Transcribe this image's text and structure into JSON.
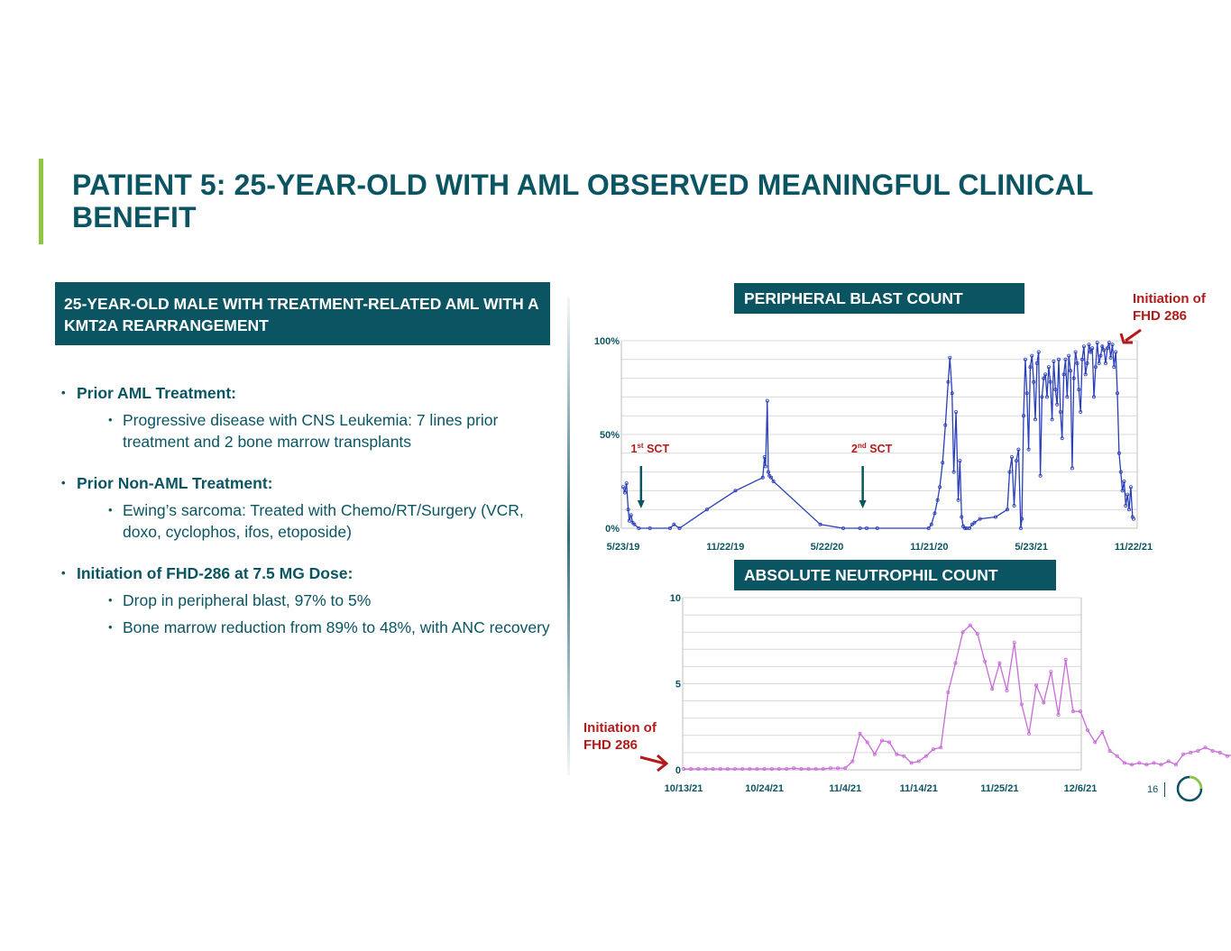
{
  "title": "PATIENT 5: 25-YEAR-OLD WITH AML OBSERVED MEANINGFUL CLINICAL BENEFIT",
  "subhead": "25-YEAR-OLD MALE WITH TREATMENT-RELATED AML WITH A KMT2A REARRANGEMENT",
  "sections": [
    {
      "heading": "Prior AML Treatment:",
      "items": [
        "Progressive disease with CNS Leukemia: 7 lines prior treatment and 2 bone marrow transplants"
      ]
    },
    {
      "heading": "Prior Non-AML Treatment:",
      "items": [
        "Ewing’s sarcoma: Treated with Chemo/RT/Surgery (VCR, doxo, cyclophos, ifos, etoposide)"
      ]
    },
    {
      "heading": "Initiation of FHD-286 at 7.5 MG Dose:",
      "items": [
        "Drop in peripheral blast, 97% to 5%",
        "Bone marrow reduction from 89% to 48%, with ANC recovery"
      ]
    }
  ],
  "page_number": "16",
  "colors": {
    "teal": "#0b5563",
    "green_accent": "#8dc63f",
    "red_annotation": "#b31b1b",
    "blast_line": "#2a3fb8",
    "anc_line": "#c86ad8"
  },
  "chart_data": [
    {
      "type": "line",
      "title": "PERIPHERAL BLAST COUNT",
      "callout": {
        "line1": "Initiation of",
        "line2": "FHD 286"
      },
      "x_ticks": [
        "5/23/19",
        "11/22/19",
        "5/22/20",
        "11/21/20",
        "5/23/21",
        "11/22/21"
      ],
      "y_ticks": [
        "0%",
        "50%",
        "100%"
      ],
      "ylim": [
        0,
        100
      ],
      "grid": true,
      "x_unit": "date",
      "annotations": [
        {
          "label": "1st SCT",
          "base": "1",
          "sup": "st",
          "rest": " SCT",
          "x": "2019-06-24"
        },
        {
          "label": "2nd SCT",
          "base": "2",
          "sup": "nd",
          "rest": " SCT",
          "x": "2020-07-25"
        }
      ],
      "series": [
        {
          "x": [
            "2019-05-23",
            "2019-05-26",
            "2019-05-29",
            "2019-06-01",
            "2019-06-03",
            "2019-06-06",
            "2019-06-09",
            "2019-06-12",
            "2019-06-20",
            "2019-07-10",
            "2019-08-15",
            "2019-08-22",
            "2019-09-01",
            "2019-10-20",
            "2019-12-10",
            "2020-01-28",
            "2020-01-31",
            "2020-02-02",
            "2020-02-05",
            "2020-02-07",
            "2020-02-09",
            "2020-02-12",
            "2020-02-16",
            "2020-05-10",
            "2020-06-20",
            "2020-07-20",
            "2020-08-01",
            "2020-08-20",
            "2020-11-20",
            "2020-11-25",
            "2020-12-01",
            "2020-12-06",
            "2020-12-10",
            "2020-12-15",
            "2020-12-20",
            "2020-12-25",
            "2020-12-28",
            "2021-01-01",
            "2021-01-04",
            "2021-01-08",
            "2021-01-12",
            "2021-01-15",
            "2021-01-18",
            "2021-01-21",
            "2021-01-24",
            "2021-01-27",
            "2021-02-01",
            "2021-02-06",
            "2021-02-10",
            "2021-02-20",
            "2021-03-20",
            "2021-04-10",
            "2021-04-14",
            "2021-04-18",
            "2021-04-22",
            "2021-04-26",
            "2021-04-30",
            "2021-05-04",
            "2021-05-06",
            "2021-05-09",
            "2021-05-12",
            "2021-05-15",
            "2021-05-18",
            "2021-05-21",
            "2021-05-24",
            "2021-05-27",
            "2021-05-30",
            "2021-06-02",
            "2021-06-05",
            "2021-06-08",
            "2021-06-11",
            "2021-06-14",
            "2021-06-17",
            "2021-06-20",
            "2021-06-23",
            "2021-06-26",
            "2021-06-29",
            "2021-07-02",
            "2021-07-05",
            "2021-07-08",
            "2021-07-11",
            "2021-07-14",
            "2021-07-17",
            "2021-07-20",
            "2021-07-23",
            "2021-07-26",
            "2021-07-29",
            "2021-08-01",
            "2021-08-04",
            "2021-08-07",
            "2021-08-10",
            "2021-08-13",
            "2021-08-16",
            "2021-08-19",
            "2021-08-22",
            "2021-08-25",
            "2021-08-28",
            "2021-08-31",
            "2021-09-03",
            "2021-09-06",
            "2021-09-09",
            "2021-09-12",
            "2021-09-15",
            "2021-09-18",
            "2021-09-21",
            "2021-09-24",
            "2021-09-27",
            "2021-09-30",
            "2021-10-03",
            "2021-10-06",
            "2021-10-09",
            "2021-10-12",
            "2021-10-15",
            "2021-10-18",
            "2021-10-21",
            "2021-10-24",
            "2021-10-27",
            "2021-10-30",
            "2021-11-02",
            "2021-11-05",
            "2021-11-08",
            "2021-11-11",
            "2021-11-14",
            "2021-11-17",
            "2021-11-20",
            "2021-11-22"
          ],
          "y": [
            22,
            19,
            24,
            10,
            4,
            7,
            3,
            2,
            0,
            0,
            0,
            2,
            0,
            10,
            20,
            27,
            38,
            33,
            68,
            30,
            28,
            27,
            25,
            2,
            0,
            0,
            0,
            0,
            0,
            2,
            8,
            15,
            22,
            35,
            55,
            78,
            91,
            72,
            30,
            62,
            15,
            36,
            6,
            1,
            0,
            0,
            0,
            2,
            3,
            5,
            6,
            10,
            30,
            38,
            12,
            36,
            42,
            0,
            5,
            60,
            90,
            72,
            42,
            86,
            92,
            78,
            58,
            88,
            94,
            28,
            70,
            80,
            82,
            70,
            86,
            78,
            58,
            89,
            74,
            66,
            90,
            62,
            48,
            82,
            90,
            70,
            92,
            84,
            32,
            80,
            94,
            88,
            74,
            62,
            90,
            97,
            82,
            88,
            98,
            94,
            96,
            70,
            86,
            99,
            88,
            92,
            97,
            95,
            88,
            96,
            99,
            91,
            98,
            86,
            94,
            72,
            40,
            30,
            20,
            25,
            12,
            18,
            10,
            22,
            6,
            5
          ]
        }
      ]
    },
    {
      "type": "line",
      "title": "ABSOLUTE NEUTROPHIL COUNT",
      "callout": {
        "line1": "Initiation of",
        "line2": "FHD 286"
      },
      "x_ticks": [
        "10/13/21",
        "10/24/21",
        "11/4/21",
        "11/14/21",
        "11/25/21",
        "12/6/21"
      ],
      "y_ticks": [
        "0",
        "5",
        "10"
      ],
      "ylim": [
        0,
        10
      ],
      "grid": true,
      "x_unit": "date",
      "series": [
        {
          "x": [
            "2021-10-13",
            "2021-10-14",
            "2021-10-15",
            "2021-10-16",
            "2021-10-17",
            "2021-10-18",
            "2021-10-19",
            "2021-10-20",
            "2021-10-21",
            "2021-10-22",
            "2021-10-23",
            "2021-10-24",
            "2021-10-25",
            "2021-10-26",
            "2021-10-27",
            "2021-10-28",
            "2021-10-29",
            "2021-10-30",
            "2021-10-31",
            "2021-11-01",
            "2021-11-02",
            "2021-11-03",
            "2021-11-04",
            "2021-11-05",
            "2021-11-06",
            "2021-11-07",
            "2021-11-08",
            "2021-11-09",
            "2021-11-10",
            "2021-11-11",
            "2021-11-12",
            "2021-11-13",
            "2021-11-14",
            "2021-11-15",
            "2021-11-16",
            "2021-11-17",
            "2021-11-18",
            "2021-11-19",
            "2021-11-20",
            "2021-11-21",
            "2021-11-22",
            "2021-11-23",
            "2021-11-24",
            "2021-11-25",
            "2021-11-26",
            "2021-11-27",
            "2021-11-28",
            "2021-11-29",
            "2021-11-30",
            "2021-12-01",
            "2021-12-02",
            "2021-12-03",
            "2021-12-04",
            "2021-12-05",
            "2021-12-06",
            "2021-12-07",
            "2021-12-08",
            "2021-12-09",
            "2021-12-10",
            "2021-12-11",
            "2021-12-12",
            "2021-12-13",
            "2021-12-14",
            "2021-12-15",
            "2021-12-16",
            "2021-12-17",
            "2021-12-18",
            "2021-12-19",
            "2021-12-20",
            "2021-12-21",
            "2021-12-22",
            "2021-12-23",
            "2021-12-24",
            "2021-12-25",
            "2021-12-26",
            "2021-12-27"
          ],
          "y": [
            0.05,
            0.05,
            0.05,
            0.05,
            0.05,
            0.05,
            0.05,
            0.05,
            0.05,
            0.05,
            0.05,
            0.05,
            0.05,
            0.05,
            0.05,
            0.1,
            0.05,
            0.05,
            0.05,
            0.05,
            0.1,
            0.1,
            0.1,
            0.5,
            2.1,
            1.6,
            0.9,
            1.7,
            1.6,
            0.9,
            0.8,
            0.4,
            0.5,
            0.8,
            1.2,
            1.3,
            4.5,
            6.2,
            8.0,
            8.4,
            7.9,
            6.3,
            4.7,
            6.2,
            4.6,
            7.4,
            3.8,
            2.1,
            4.9,
            3.9,
            5.7,
            3.2,
            6.4,
            3.4,
            3.4,
            2.3,
            1.6,
            2.2,
            1.1,
            0.8,
            0.4,
            0.3,
            0.4,
            0.3,
            0.4,
            0.3,
            0.5,
            0.3,
            0.9,
            1.0,
            1.1,
            1.3,
            1.1,
            1.0,
            0.8,
            0.9
          ]
        }
      ]
    }
  ]
}
